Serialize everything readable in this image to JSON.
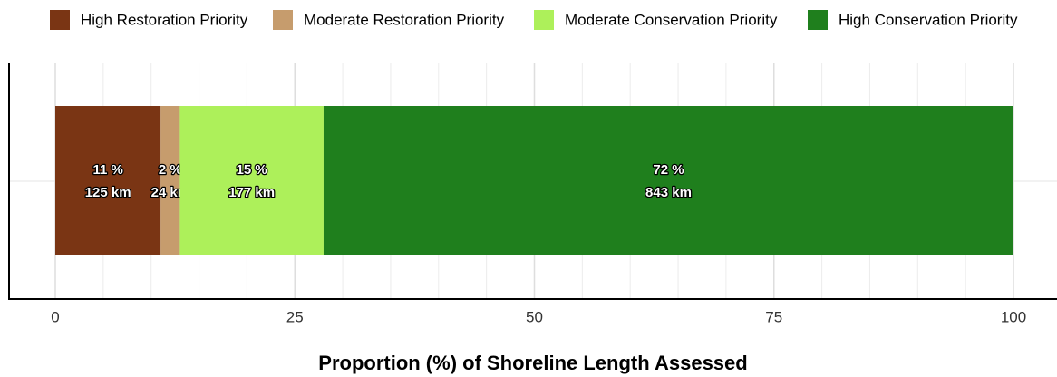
{
  "chart_data": {
    "type": "stacked_bar_horizontal",
    "xlabel": "Proportion (%) of Shoreline Length Assessed",
    "xlim": [
      0,
      100
    ],
    "xticks": [
      0,
      25,
      50,
      75,
      100
    ],
    "grid": true,
    "legend": "top",
    "series": [
      {
        "name": "High Restoration Priority",
        "color": "#7a3514",
        "values": [
          11
        ],
        "value_labels": [
          "11 %"
        ],
        "length_labels": [
          "125 km"
        ]
      },
      {
        "name": "Moderate Restoration Priority",
        "color": "#c69c6d",
        "values": [
          2
        ],
        "value_labels": [
          "2 %"
        ],
        "length_labels": [
          "24 km"
        ]
      },
      {
        "name": "Moderate Conservation Priority",
        "color": "#adf05a",
        "values": [
          15
        ],
        "value_labels": [
          "15 %"
        ],
        "length_labels": [
          "177 km"
        ]
      },
      {
        "name": "High Conservation Priority",
        "color": "#1f7f1d",
        "values": [
          72
        ],
        "value_labels": [
          "72 %"
        ],
        "length_labels": [
          "843 km"
        ]
      }
    ]
  }
}
